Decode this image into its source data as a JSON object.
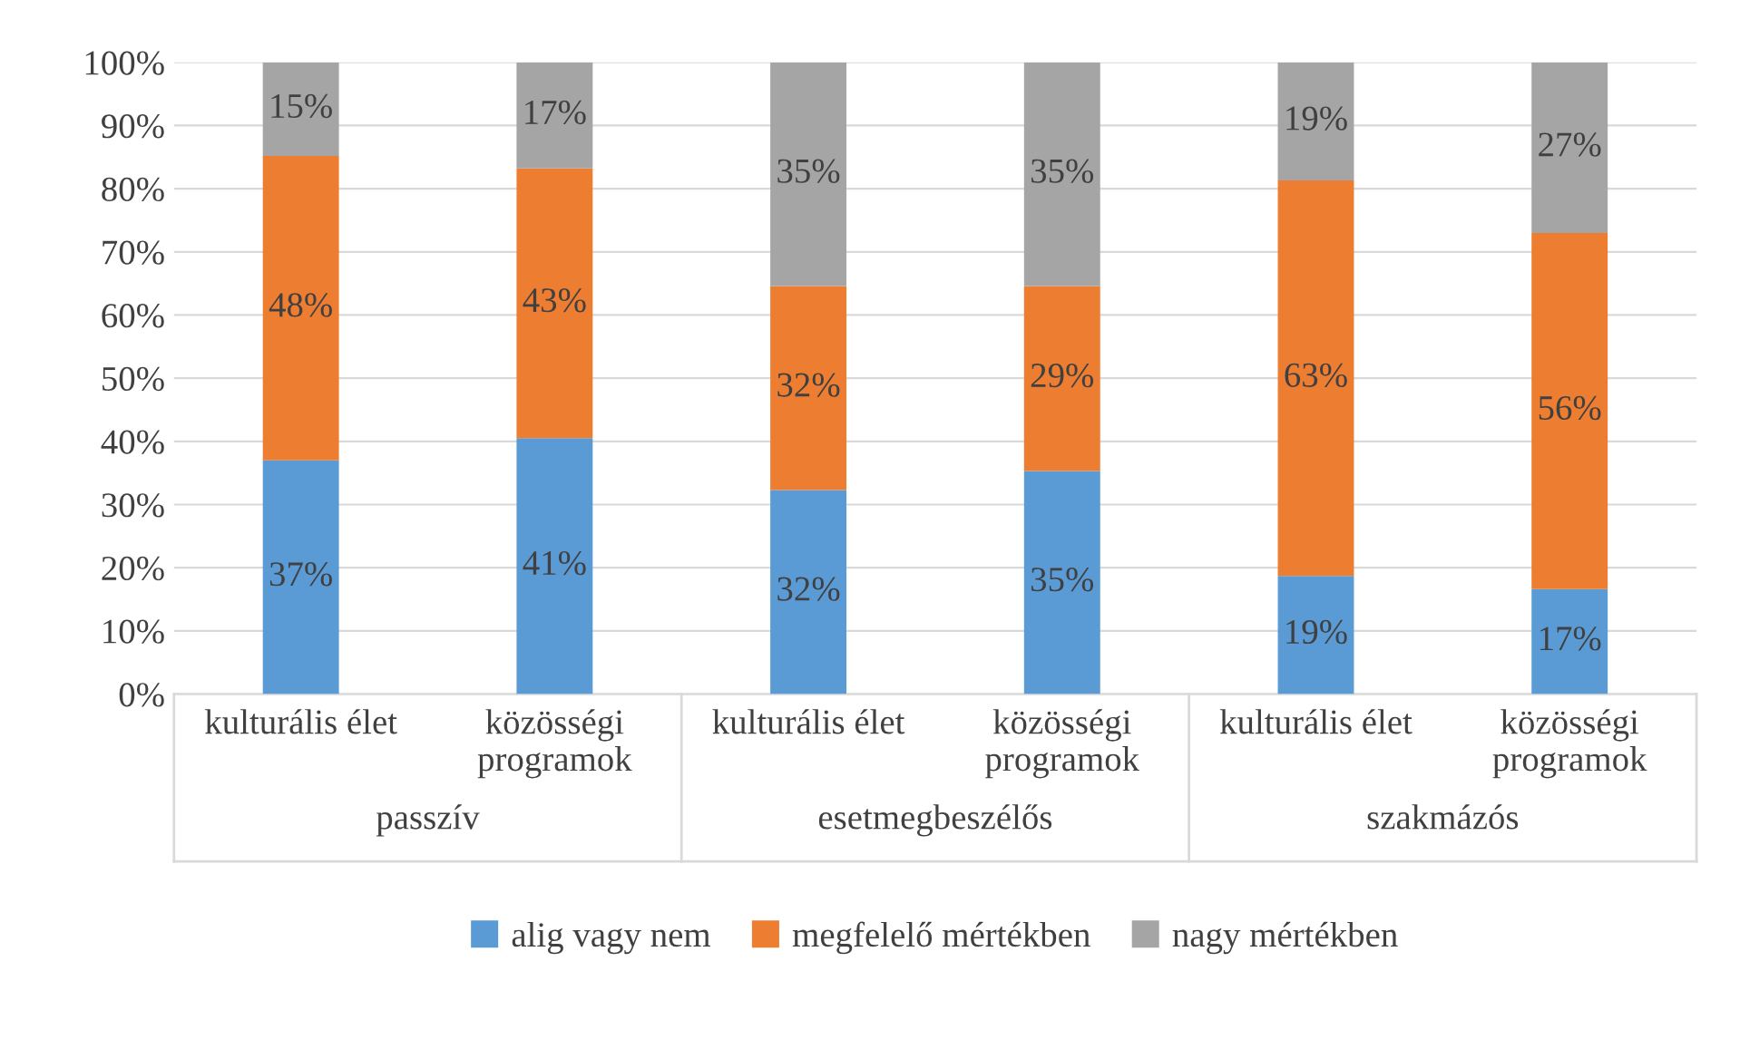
{
  "chart_data": {
    "type": "bar",
    "stacked": true,
    "categories": [
      "kulturális élet",
      "közösségi\nprogramok",
      "kulturális élet",
      "közösségi\nprogramok",
      "kulturális élet",
      "közösségi\nprogramok"
    ],
    "annotations": [
      "passzív",
      "esetmegbeszélős",
      "szakmázós"
    ],
    "series": [
      {
        "name": "alig vagy nem",
        "color": "#5b9bd5",
        "values": [
          37.0,
          40.5,
          32.3,
          35.3,
          18.7,
          16.6
        ],
        "value_labels": [
          "37%",
          "41%",
          "32%",
          "35%",
          "19%",
          "17%"
        ]
      },
      {
        "name": "megfelelő mértékben",
        "color": "#ed7d31",
        "values": [
          48.2,
          42.7,
          32.3,
          29.3,
          62.6,
          56.4
        ],
        "value_labels": [
          "48%",
          "43%",
          "32%",
          "29%",
          "63%",
          "56%"
        ]
      },
      {
        "name": "nagy mértékben",
        "color": "#a5a5a5",
        "values": [
          14.8,
          16.8,
          35.4,
          35.4,
          18.7,
          27.0
        ],
        "value_labels": [
          "15%",
          "17%",
          "35%",
          "35%",
          "19%",
          "27%"
        ]
      }
    ],
    "ylim": [
      0,
      100
    ],
    "yticks": [
      {
        "value": 0,
        "label": "0%"
      },
      {
        "value": 10,
        "label": "10%"
      },
      {
        "value": 20,
        "label": "20%"
      },
      {
        "value": 30,
        "label": "30%"
      },
      {
        "value": 40,
        "label": "40%"
      },
      {
        "value": 50,
        "label": "50%"
      },
      {
        "value": 60,
        "label": "60%"
      },
      {
        "value": 70,
        "label": "70%"
      },
      {
        "value": 80,
        "label": "80%"
      },
      {
        "value": 90,
        "label": "90%"
      },
      {
        "value": 100,
        "label": "100%"
      }
    ],
    "grid": "y",
    "legend": "bottom"
  }
}
